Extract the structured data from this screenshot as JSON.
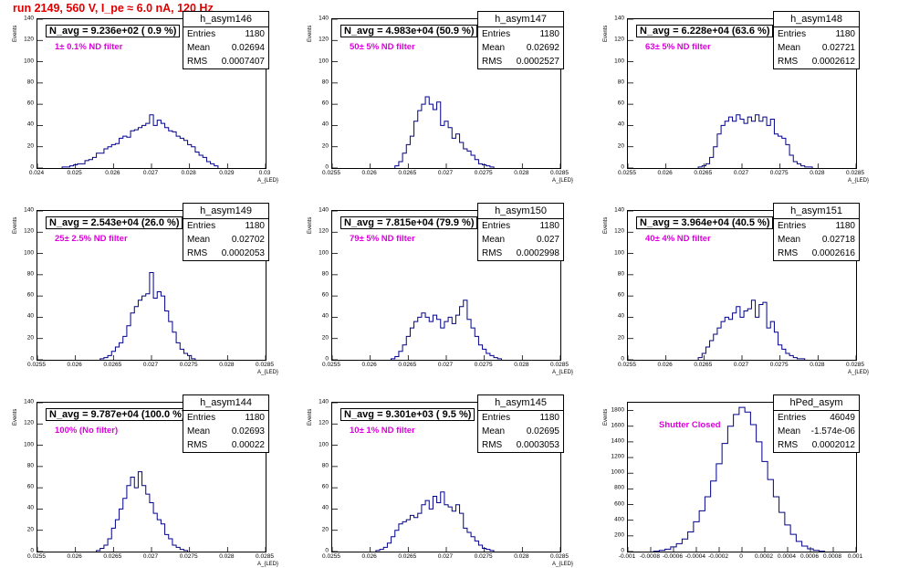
{
  "header": {
    "title": "run 2149,   560 V, I_pe ≈ 6.0 nA, 120 Hz"
  },
  "chart_data": [
    {
      "type": "bar",
      "name": "h_asym146",
      "title": "N_avg = 9.236e+02 ( 0.9 %)",
      "annotation": "1± 0.1% ND filter",
      "xlabel": "A_{LED}",
      "ylabel": "Events",
      "xlim": [
        0.024,
        0.03
      ],
      "ylim": [
        0,
        140
      ],
      "xticks": [
        "0.024",
        "0.025",
        "0.026",
        "0.027",
        "0.028",
        "0.029",
        "0.03"
      ],
      "xtick_values": [
        0.024,
        0.025,
        0.026,
        0.027,
        0.028,
        0.029,
        0.03
      ],
      "yticks": [
        0,
        20,
        40,
        60,
        80,
        100,
        120,
        140
      ],
      "stats": {
        "entries": "1180",
        "mean": "0.02694",
        "rms": "0.0007407"
      },
      "x": [
        0.0247,
        0.0248,
        0.0249,
        0.025,
        0.0251,
        0.0252,
        0.0253,
        0.0254,
        0.0255,
        0.0256,
        0.0257,
        0.0258,
        0.0259,
        0.026,
        0.0261,
        0.0262,
        0.0263,
        0.0264,
        0.0265,
        0.0266,
        0.0267,
        0.0268,
        0.0269,
        0.027,
        0.0271,
        0.0272,
        0.0273,
        0.0274,
        0.0275,
        0.0276,
        0.0277,
        0.0278,
        0.0279,
        0.028,
        0.0281,
        0.0282,
        0.0283,
        0.0284,
        0.0285,
        0.0286,
        0.0287
      ],
      "values": [
        1,
        1,
        2,
        3,
        4,
        4,
        7,
        8,
        10,
        14,
        14,
        18,
        20,
        22,
        23,
        28,
        30,
        29,
        35,
        36,
        38,
        40,
        42,
        50,
        40,
        45,
        42,
        38,
        35,
        34,
        30,
        28,
        26,
        22,
        20,
        15,
        12,
        10,
        6,
        4,
        2
      ]
    },
    {
      "type": "bar",
      "name": "h_asym147",
      "title": "N_avg = 4.983e+04 (50.9 %)",
      "annotation": "50± 5% ND filter",
      "xlabel": "A_{LED}",
      "ylabel": "Events",
      "xlim": [
        0.0255,
        0.0285
      ],
      "ylim": [
        0,
        140
      ],
      "xticks": [
        "0.0255",
        "0.026",
        "0.0265",
        "0.027",
        "0.0275",
        "0.028",
        "0.0285"
      ],
      "xtick_values": [
        0.0255,
        0.026,
        0.0265,
        0.027,
        0.0275,
        0.028,
        0.0285
      ],
      "yticks": [
        0,
        20,
        40,
        60,
        80,
        100,
        120,
        140
      ],
      "stats": {
        "entries": "1180",
        "mean": "0.02692",
        "rms": "0.0002527"
      },
      "x": [
        0.02635,
        0.0264,
        0.02645,
        0.0265,
        0.02655,
        0.0266,
        0.02665,
        0.0267,
        0.02675,
        0.0268,
        0.02685,
        0.0269,
        0.02695,
        0.027,
        0.02705,
        0.0271,
        0.02715,
        0.0272,
        0.02725,
        0.0273,
        0.02735,
        0.0274,
        0.02745,
        0.0275,
        0.02755,
        0.0276
      ],
      "values": [
        2,
        6,
        14,
        22,
        30,
        44,
        54,
        60,
        67,
        60,
        55,
        62,
        40,
        44,
        38,
        28,
        32,
        24,
        18,
        16,
        12,
        8,
        4,
        3,
        2,
        1
      ]
    },
    {
      "type": "bar",
      "name": "h_asym148",
      "title": "N_avg = 6.228e+04 (63.6 %)",
      "annotation": "63± 5% ND filter",
      "xlabel": "A_{LED}",
      "ylabel": "Events",
      "xlim": [
        0.0255,
        0.0285
      ],
      "ylim": [
        0,
        140
      ],
      "xticks": [
        "0.0255",
        "0.026",
        "0.0265",
        "0.027",
        "0.0275",
        "0.028",
        "0.0285"
      ],
      "xtick_values": [
        0.0255,
        0.026,
        0.0265,
        0.027,
        0.0275,
        0.028,
        0.0285
      ],
      "yticks": [
        0,
        20,
        40,
        60,
        80,
        100,
        120,
        140
      ],
      "stats": {
        "entries": "1180",
        "mean": "0.02721",
        "rms": "0.0002612"
      },
      "x": [
        0.02645,
        0.0265,
        0.02655,
        0.0266,
        0.02665,
        0.0267,
        0.02675,
        0.0268,
        0.02685,
        0.0269,
        0.02695,
        0.027,
        0.02705,
        0.0271,
        0.02715,
        0.0272,
        0.02725,
        0.0273,
        0.02735,
        0.0274,
        0.02745,
        0.0275,
        0.02755,
        0.0276,
        0.02765,
        0.0277,
        0.02775,
        0.0278,
        0.02785,
        0.0279
      ],
      "values": [
        1,
        2,
        4,
        10,
        20,
        32,
        40,
        44,
        48,
        44,
        50,
        46,
        42,
        48,
        44,
        50,
        44,
        48,
        40,
        46,
        32,
        30,
        28,
        22,
        12,
        6,
        4,
        2,
        1,
        1
      ]
    },
    {
      "type": "bar",
      "name": "h_asym149",
      "title": "N_avg = 2.543e+04 (26.0 %)",
      "annotation": "25± 2.5% ND filter",
      "xlabel": "A_{LED}",
      "ylabel": "Events",
      "xlim": [
        0.0255,
        0.0285
      ],
      "ylim": [
        0,
        140
      ],
      "xticks": [
        "0.0255",
        "0.026",
        "0.0265",
        "0.027",
        "0.0275",
        "0.028",
        "0.0285"
      ],
      "xtick_values": [
        0.0255,
        0.026,
        0.0265,
        0.027,
        0.0275,
        0.028,
        0.0285
      ],
      "yticks": [
        0,
        20,
        40,
        60,
        80,
        100,
        120,
        140
      ],
      "stats": {
        "entries": "1180",
        "mean": "0.02702",
        "rms": "0.0002053"
      },
      "x": [
        0.02635,
        0.0264,
        0.02645,
        0.0265,
        0.02655,
        0.0266,
        0.02665,
        0.0267,
        0.02675,
        0.0268,
        0.02685,
        0.0269,
        0.02695,
        0.027,
        0.02705,
        0.0271,
        0.02715,
        0.0272,
        0.02725,
        0.0273,
        0.02735,
        0.0274,
        0.02745,
        0.0275,
        0.02755
      ],
      "values": [
        1,
        2,
        4,
        8,
        12,
        16,
        22,
        32,
        44,
        50,
        56,
        60,
        62,
        82,
        58,
        64,
        60,
        46,
        36,
        26,
        16,
        10,
        6,
        4,
        1
      ]
    },
    {
      "type": "bar",
      "name": "h_asym150",
      "title": "N_avg = 7.815e+04 (79.9 %)",
      "annotation": "79± 5% ND filter",
      "xlabel": "A_{LED}",
      "ylabel": "Events",
      "xlim": [
        0.0255,
        0.0285
      ],
      "ylim": [
        0,
        140
      ],
      "xticks": [
        "0.0255",
        "0.026",
        "0.0265",
        "0.027",
        "0.0275",
        "0.028",
        "0.0285"
      ],
      "xtick_values": [
        0.0255,
        0.026,
        0.0265,
        0.027,
        0.0275,
        0.028,
        0.0285
      ],
      "yticks": [
        0,
        20,
        40,
        60,
        80,
        100,
        120,
        140
      ],
      "stats": {
        "entries": "1180",
        "mean": "0.027",
        "rms": "0.0002998"
      },
      "x": [
        0.0263,
        0.02635,
        0.0264,
        0.02645,
        0.0265,
        0.02655,
        0.0266,
        0.02665,
        0.0267,
        0.02675,
        0.0268,
        0.02685,
        0.0269,
        0.02695,
        0.027,
        0.02705,
        0.0271,
        0.02715,
        0.0272,
        0.02725,
        0.0273,
        0.02735,
        0.0274,
        0.02745,
        0.0275,
        0.02755,
        0.0276,
        0.02765,
        0.0277
      ],
      "values": [
        1,
        3,
        8,
        14,
        22,
        30,
        36,
        40,
        44,
        40,
        36,
        42,
        38,
        30,
        36,
        40,
        34,
        42,
        50,
        56,
        38,
        30,
        22,
        14,
        10,
        6,
        4,
        2,
        1
      ]
    },
    {
      "type": "bar",
      "name": "h_asym151",
      "title": "N_avg = 3.964e+04 (40.5 %)",
      "annotation": "40± 4% ND filter",
      "xlabel": "A_{LED}",
      "ylabel": "Events",
      "xlim": [
        0.0255,
        0.0285
      ],
      "ylim": [
        0,
        140
      ],
      "xticks": [
        "0.0255",
        "0.026",
        "0.0265",
        "0.027",
        "0.0275",
        "0.028",
        "0.0285"
      ],
      "xtick_values": [
        0.0255,
        0.026,
        0.0265,
        0.027,
        0.0275,
        0.028,
        0.0285
      ],
      "yticks": [
        0,
        20,
        40,
        60,
        80,
        100,
        120,
        140
      ],
      "stats": {
        "entries": "1180",
        "mean": "0.02718",
        "rms": "0.0002616"
      },
      "x": [
        0.02645,
        0.0265,
        0.02655,
        0.0266,
        0.02665,
        0.0267,
        0.02675,
        0.0268,
        0.02685,
        0.0269,
        0.02695,
        0.027,
        0.02705,
        0.0271,
        0.02715,
        0.0272,
        0.02725,
        0.0273,
        0.02735,
        0.0274,
        0.02745,
        0.0275,
        0.02755,
        0.0276,
        0.02765,
        0.0277,
        0.02775,
        0.0278
      ],
      "values": [
        2,
        6,
        12,
        18,
        24,
        30,
        36,
        40,
        38,
        44,
        50,
        40,
        46,
        48,
        56,
        40,
        52,
        54,
        30,
        36,
        26,
        14,
        10,
        6,
        4,
        2,
        1,
        1
      ]
    },
    {
      "type": "bar",
      "name": "h_asym144",
      "title": "N_avg = 9.787e+04 (100.0 %)",
      "annotation": "100% (No filter)",
      "xlabel": "A_{LED}",
      "ylabel": "Events",
      "xlim": [
        0.0255,
        0.0285
      ],
      "ylim": [
        0,
        140
      ],
      "xticks": [
        "0.0255",
        "0.026",
        "0.0265",
        "0.027",
        "0.0275",
        "0.028",
        "0.0285"
      ],
      "xtick_values": [
        0.0255,
        0.026,
        0.0265,
        0.027,
        0.0275,
        0.028,
        0.0285
      ],
      "yticks": [
        0,
        20,
        40,
        60,
        80,
        100,
        120,
        140
      ],
      "stats": {
        "entries": "1180",
        "mean": "0.02693",
        "rms": "0.00022"
      },
      "x": [
        0.0263,
        0.02635,
        0.0264,
        0.02645,
        0.0265,
        0.02655,
        0.0266,
        0.02665,
        0.0267,
        0.02675,
        0.0268,
        0.02685,
        0.0269,
        0.02695,
        0.027,
        0.02705,
        0.0271,
        0.02715,
        0.0272,
        0.02725,
        0.0273,
        0.02735,
        0.0274,
        0.02745
      ],
      "values": [
        1,
        3,
        6,
        12,
        22,
        30,
        40,
        50,
        62,
        70,
        60,
        75,
        62,
        54,
        46,
        36,
        30,
        26,
        16,
        12,
        6,
        4,
        2,
        1
      ]
    },
    {
      "type": "bar",
      "name": "h_asym145",
      "title": "N_avg = 9.301e+03 ( 9.5 %)",
      "annotation": "10± 1% ND filter",
      "xlabel": "A_{LED}",
      "ylabel": "Events",
      "xlim": [
        0.0255,
        0.0285
      ],
      "ylim": [
        0,
        140
      ],
      "xticks": [
        "0.0255",
        "0.026",
        "0.0265",
        "0.027",
        "0.0275",
        "0.028",
        "0.0285"
      ],
      "xtick_values": [
        0.0255,
        0.026,
        0.0265,
        0.027,
        0.0275,
        0.028,
        0.0285
      ],
      "yticks": [
        0,
        20,
        40,
        60,
        80,
        100,
        120,
        140
      ],
      "stats": {
        "entries": "1180",
        "mean": "0.02695",
        "rms": "0.0003053"
      },
      "x": [
        0.0261,
        0.02615,
        0.0262,
        0.02625,
        0.0263,
        0.02635,
        0.0264,
        0.02645,
        0.0265,
        0.02655,
        0.0266,
        0.02665,
        0.0267,
        0.02675,
        0.0268,
        0.02685,
        0.0269,
        0.02695,
        0.027,
        0.02705,
        0.0271,
        0.02715,
        0.0272,
        0.02725,
        0.0273,
        0.02735,
        0.0274,
        0.02745,
        0.0275,
        0.02755,
        0.0276
      ],
      "values": [
        1,
        2,
        4,
        8,
        14,
        20,
        26,
        28,
        30,
        34,
        32,
        36,
        44,
        48,
        40,
        52,
        46,
        56,
        44,
        42,
        38,
        44,
        36,
        22,
        18,
        14,
        10,
        6,
        3,
        2,
        1
      ]
    },
    {
      "type": "bar",
      "name": "hPed_asym",
      "title": "",
      "annotation": "Shutter Closed",
      "xlabel": "",
      "ylabel": "Events",
      "xlim": [
        -0.001,
        0.001
      ],
      "ylim": [
        0,
        1900
      ],
      "xticks": [
        "-0.001",
        "-0.0008",
        "-0.0006",
        "-0.0004",
        "-0.0002",
        "0",
        "0.0002",
        "0.0004",
        "0.0006",
        "0.0008",
        "0.001"
      ],
      "xtick_values": [
        -0.001,
        -0.0008,
        -0.0006,
        -0.0004,
        -0.0002,
        0,
        0.0002,
        0.0004,
        0.0006,
        0.0008,
        0.001
      ],
      "yticks": [
        0,
        200,
        400,
        600,
        800,
        1000,
        1200,
        1400,
        1600,
        1800
      ],
      "stats": {
        "entries": "46049",
        "mean": "-1.574e-06",
        "rms": "0.0002012"
      },
      "x": [
        -0.00075,
        -0.0007,
        -0.00065,
        -0.0006,
        -0.00055,
        -0.0005,
        -0.00045,
        -0.0004,
        -0.00035,
        -0.0003,
        -0.00025,
        -0.0002,
        -0.00015,
        -0.0001,
        -5e-05,
        0,
        5e-05,
        0.0001,
        0.00015,
        0.0002,
        0.00025,
        0.0003,
        0.00035,
        0.0004,
        0.00045,
        0.0005,
        0.00055,
        0.0006,
        0.00065,
        0.0007
      ],
      "values": [
        5,
        15,
        30,
        60,
        100,
        160,
        250,
        380,
        520,
        700,
        900,
        1120,
        1380,
        1600,
        1750,
        1840,
        1780,
        1620,
        1400,
        1150,
        920,
        700,
        500,
        340,
        220,
        130,
        70,
        35,
        15,
        5
      ]
    }
  ]
}
